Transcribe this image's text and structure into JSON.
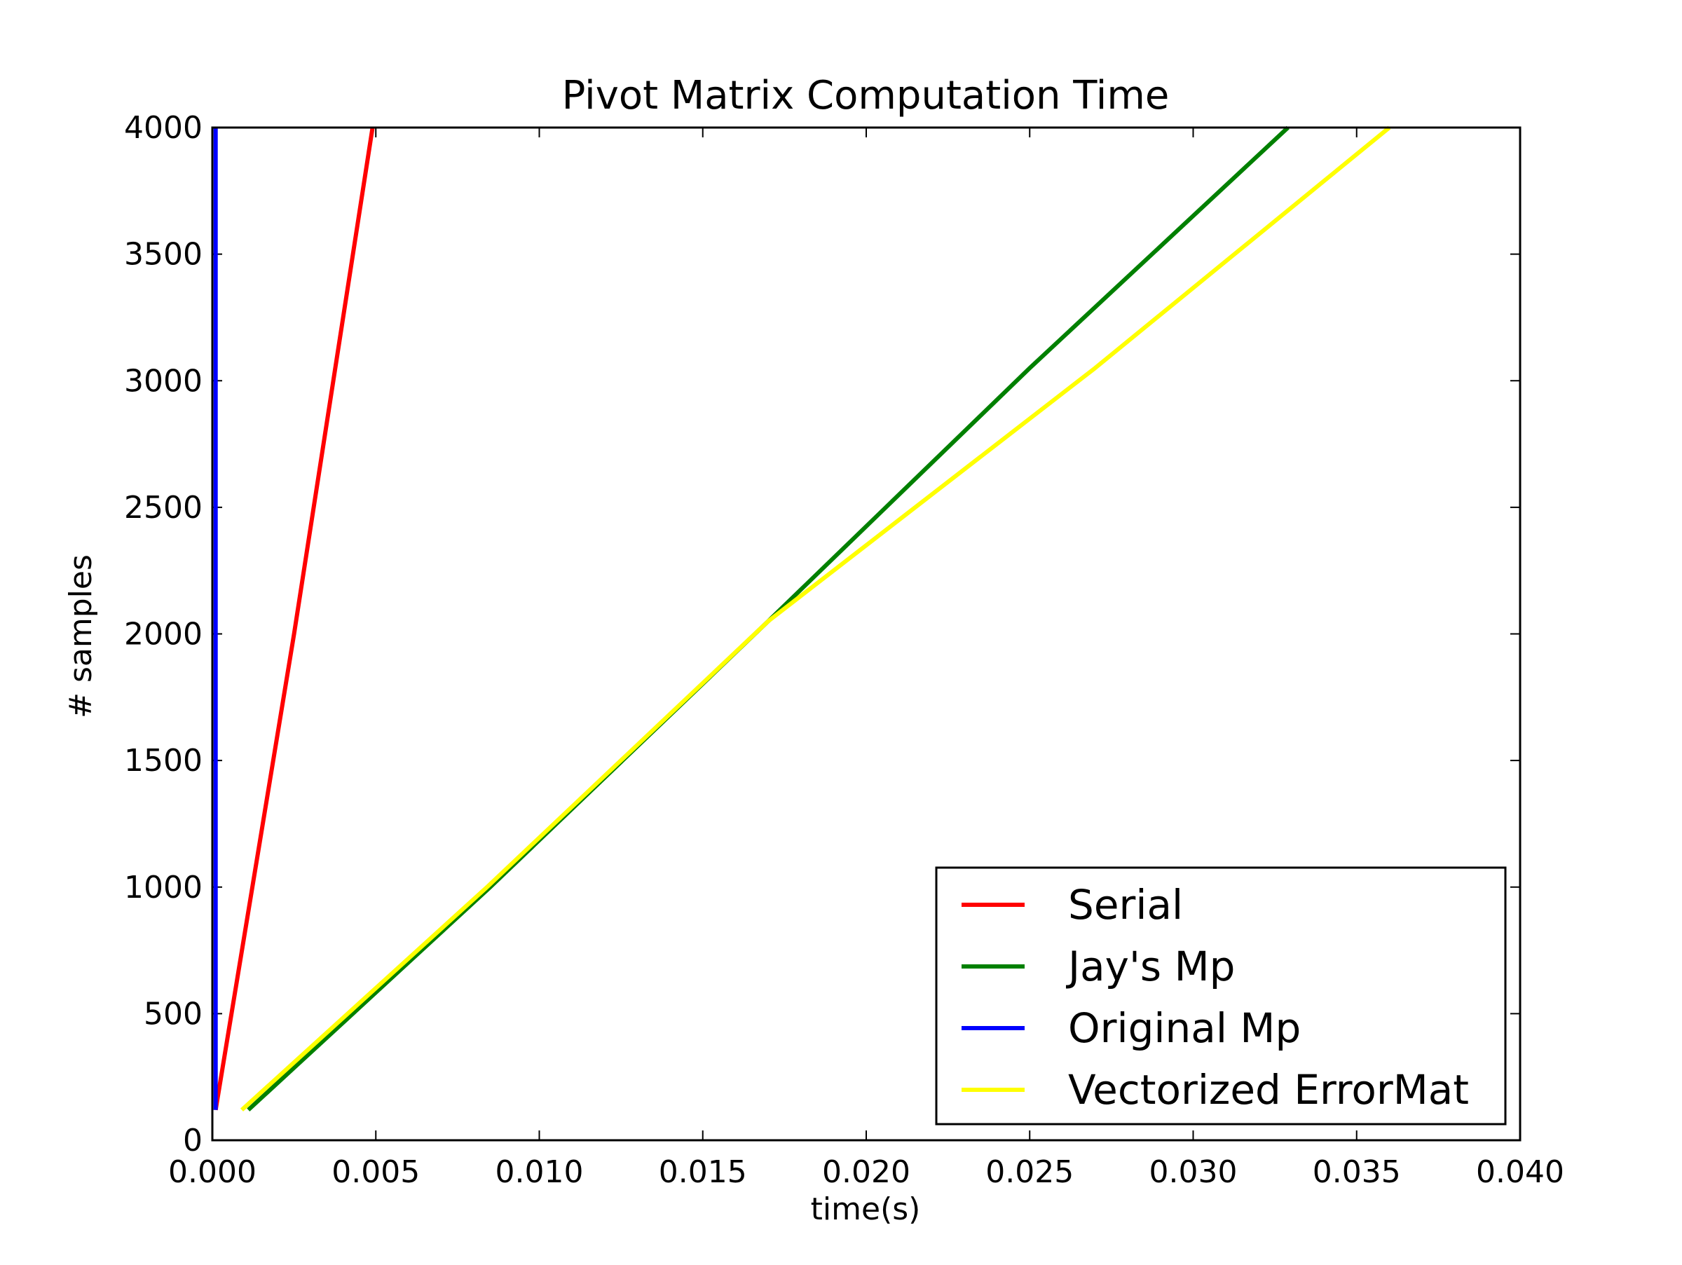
{
  "chart_data": {
    "type": "line",
    "title": "Pivot Matrix Computation Time",
    "xlabel": "time(s)",
    "ylabel": "# samples",
    "xlim": [
      0.0,
      0.04
    ],
    "ylim": [
      0,
      4000
    ],
    "xticks": [
      0.0,
      0.005,
      0.01,
      0.015,
      0.02,
      0.025,
      0.03,
      0.035,
      0.04
    ],
    "xtick_labels": [
      "0.000",
      "0.005",
      "0.010",
      "0.015",
      "0.020",
      "0.025",
      "0.030",
      "0.035",
      "0.040"
    ],
    "yticks": [
      0,
      500,
      1000,
      1500,
      2000,
      2500,
      3000,
      3500,
      4000
    ],
    "ytick_labels": [
      "0",
      "500",
      "1000",
      "1500",
      "2000",
      "2500",
      "3000",
      "3500",
      "4000"
    ],
    "grid": false,
    "legend_position": "lower-right",
    "series": [
      {
        "name": "Serial",
        "color": "#ff0000",
        "x": [
          0.0001,
          0.0025,
          0.0049
        ],
        "y": [
          120,
          2000,
          4000
        ]
      },
      {
        "name": "Jay's Mp",
        "color": "#008000",
        "x": [
          0.0011,
          0.0085,
          0.017,
          0.025,
          0.0329
        ],
        "y": [
          120,
          1000,
          2050,
          3050,
          4000
        ]
      },
      {
        "name": "Original Mp",
        "color": "#0000ff",
        "x": [
          0.0001,
          0.0001
        ],
        "y": [
          120,
          4000
        ]
      },
      {
        "name": "Vectorized ErrorMat",
        "color": "#ffff00",
        "x": [
          0.0009,
          0.0084,
          0.017,
          0.027,
          0.036
        ],
        "y": [
          120,
          1000,
          2050,
          3050,
          4000
        ]
      }
    ]
  }
}
